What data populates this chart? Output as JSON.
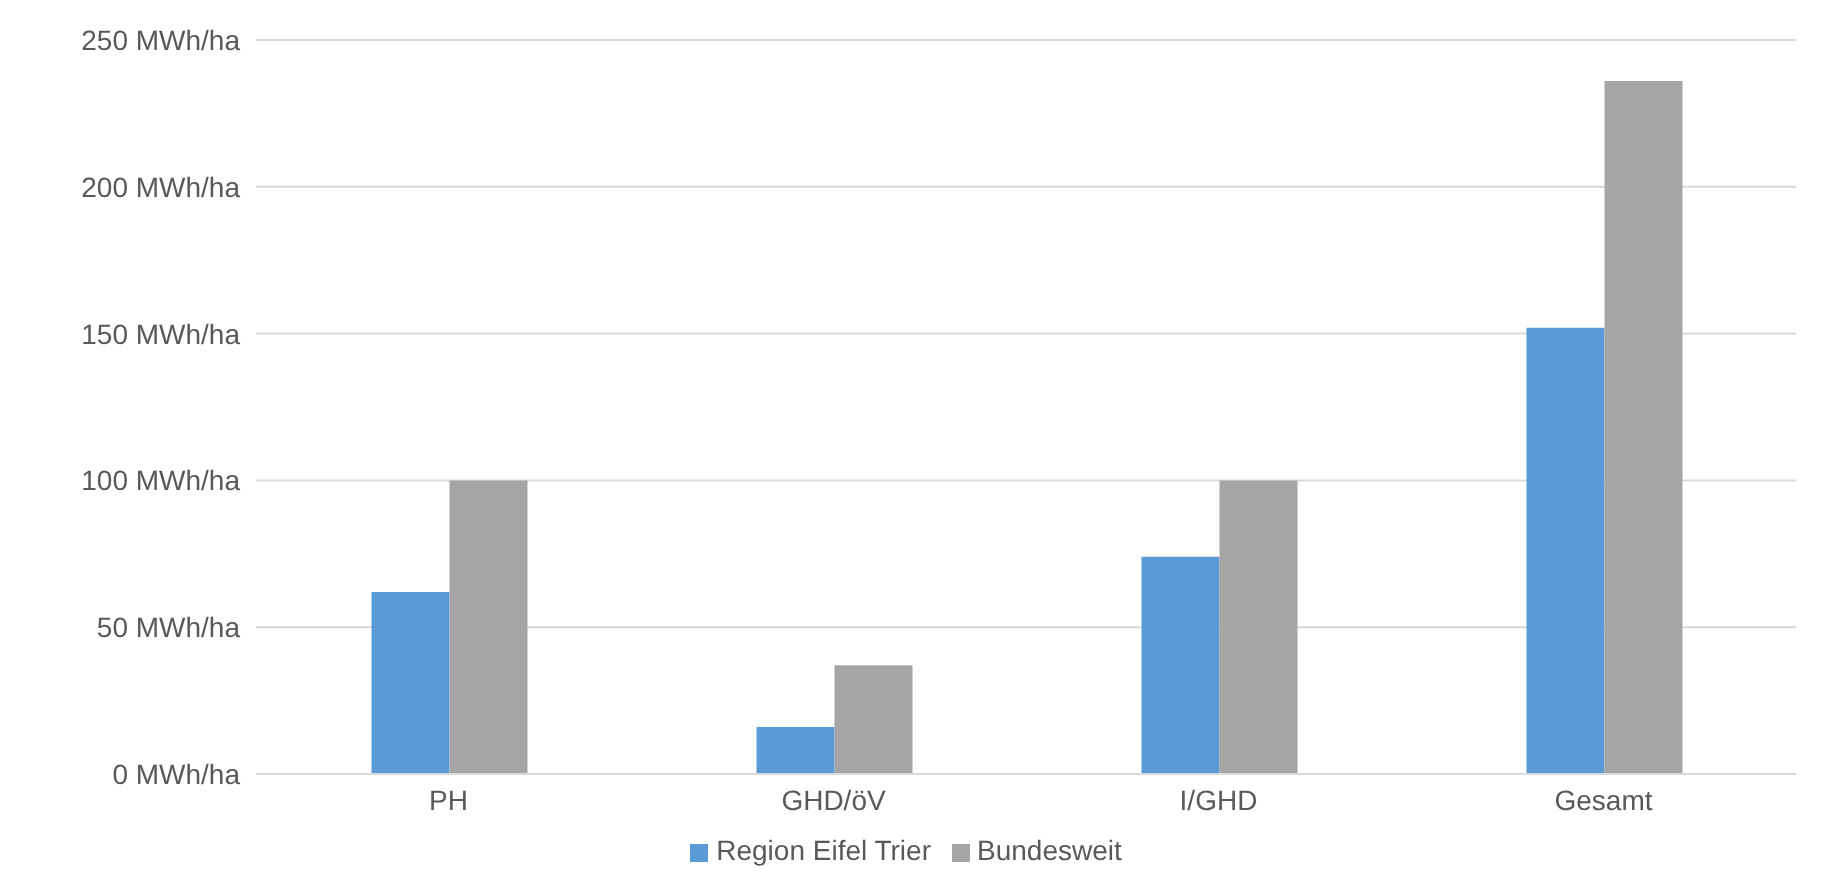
{
  "chart_data": {
    "type": "bar",
    "categories": [
      "PH",
      "GHD/öV",
      "I/GHD",
      "Gesamt"
    ],
    "series": [
      {
        "name": "Region Eifel Trier",
        "color": "#5b9bd5",
        "values": [
          62,
          16,
          74,
          152
        ]
      },
      {
        "name": "Bundesweit",
        "color": "#a5a5a5",
        "values": [
          100,
          37,
          100,
          236
        ]
      }
    ],
    "ylim": [
      0,
      250
    ],
    "yticks": [
      {
        "value": 0,
        "label": "0 MWh/ha"
      },
      {
        "value": 50,
        "label": "50 MWh/ha"
      },
      {
        "value": 100,
        "label": "100 MWh/ha"
      },
      {
        "value": 150,
        "label": "150 MWh/ha"
      },
      {
        "value": 200,
        "label": "200 MWh/ha"
      },
      {
        "value": 250,
        "label": "250 MWh/ha"
      }
    ],
    "grid": "y",
    "legend": "bottom"
  }
}
